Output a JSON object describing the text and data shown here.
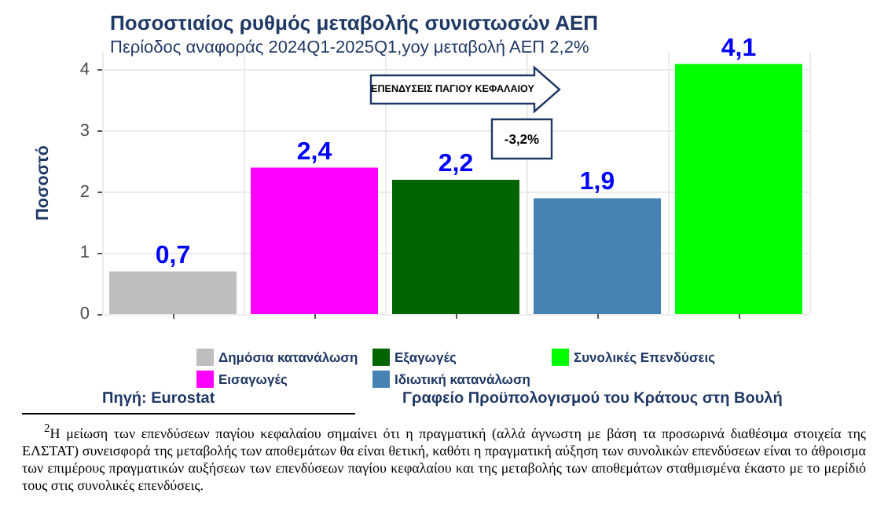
{
  "chart_data": {
    "type": "bar",
    "title": "Ποσοστιαίος ρυθμός μεταβολής συνιστωσών ΑΕΠ",
    "subtitle": "Περίοδος αναφοράς 2024Q1-2025Q1,yoy μεταβολή ΑΕΠ 2,2%",
    "ylabel": "Ποσοστό",
    "categories": [
      null,
      null,
      null,
      null,
      null
    ],
    "series": [
      {
        "name": "Δημόσια κατανάλωση",
        "color": "#bebebe",
        "values": [
          0.7,
          null,
          null,
          null,
          null
        ],
        "value_labels": [
          "0,7",
          null,
          null,
          null,
          null
        ]
      },
      {
        "name": "Εισαγωγές",
        "color": "#ff00ff",
        "values": [
          null,
          2.4,
          null,
          null,
          null
        ],
        "value_labels": [
          null,
          "2,4",
          null,
          null,
          null
        ]
      },
      {
        "name": "Εξαγωγές",
        "color": "#006400",
        "values": [
          null,
          null,
          2.2,
          null,
          null
        ],
        "value_labels": [
          null,
          null,
          "2,2",
          null,
          null
        ]
      },
      {
        "name": "Ιδιωτική κατανάλωση",
        "color": "#4682b4",
        "values": [
          null,
          null,
          null,
          1.9,
          null
        ],
        "value_labels": [
          null,
          null,
          null,
          "1,9",
          null
        ]
      },
      {
        "name": "Συνολικές Επενδύσεις",
        "color": "#00ff00",
        "values": [
          null,
          null,
          null,
          null,
          4.1
        ],
        "value_labels": [
          null,
          null,
          null,
          null,
          "4,1"
        ]
      }
    ],
    "ylim": [
      0,
      4.3
    ],
    "yticks": [
      0,
      1,
      2,
      3,
      4
    ],
    "grid": true,
    "legend": "bottom",
    "annotations": [
      "ΕΠΕΝΔΥΣΕΙΣ ΠΑΓΙΟΥ ΚΕΦΑΛΑΙΟΥ",
      "-3,2%",
      "Πηγή: Eurostat",
      "Γραφείο Προϋπολογισμού του Κράτους στη Βουλή",
      "$^{2}$Η μείωση των επενδύσεων παγίου κεφαλαίου σημαίνει ότι η πραγματική (αλλά άγνωστη με βάση τα προσωρινά διαθέσιμα στοιχεία της ΕΛΣΤΑΤ) συνεισφορά της μεταβολής των αποθεμάτων θα είναι θετική, καθότι η πραγματική αύξηση των συνολικών επενδύσεων είναι το άθροισμα των επιμέρους πραγματικών αυξήσεων των επενδύσεων παγίου κεφαλαίου και της μεταβολής των αποθεμάτων σταθμισμένα έκαστο με το μερίδιό τους στις συνολικές επενδύσεις."
    ]
  }
}
